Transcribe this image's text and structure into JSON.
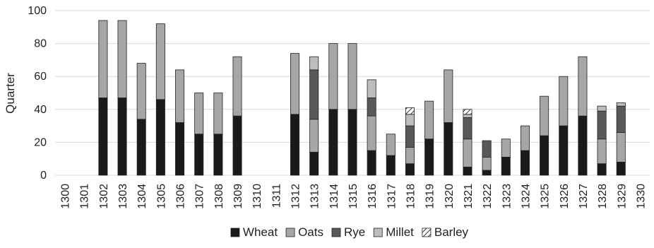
{
  "chart_data": {
    "type": "bar",
    "stacked": true,
    "title": "",
    "xlabel": "",
    "ylabel": "Quarter",
    "ylim": [
      0,
      100
    ],
    "yticks": [
      0,
      20,
      40,
      60,
      80,
      100
    ],
    "grid": true,
    "legend_position": "bottom",
    "categories": [
      "1300",
      "1301",
      "1302",
      "1303",
      "1304",
      "1305",
      "1306",
      "1307",
      "1308",
      "1309",
      "1310",
      "1311",
      "1312",
      "1313",
      "1314",
      "1315",
      "1316",
      "1317",
      "1318",
      "1319",
      "1320",
      "1321",
      "1322",
      "1323",
      "1324",
      "1325",
      "1326",
      "1327",
      "1328",
      "1329",
      "1330"
    ],
    "bar_groups": [
      {
        "year": "1302",
        "values": {
          "Wheat": 47,
          "Oats": 47,
          "Rye": 0,
          "Millet": 0,
          "Barley": 0
        }
      },
      {
        "year": "1303",
        "values": {
          "Wheat": 47,
          "Oats": 47,
          "Rye": 0,
          "Millet": 0,
          "Barley": 0
        }
      },
      {
        "year": "1304",
        "values": {
          "Wheat": 34,
          "Oats": 34,
          "Rye": 0,
          "Millet": 0,
          "Barley": 0
        }
      },
      {
        "year": "1305",
        "values": {
          "Wheat": 46,
          "Oats": 46,
          "Rye": 0,
          "Millet": 0,
          "Barley": 0
        }
      },
      {
        "year": "1306",
        "values": {
          "Wheat": 32,
          "Oats": 32,
          "Rye": 0,
          "Millet": 0,
          "Barley": 0
        }
      },
      {
        "year": "1307",
        "values": {
          "Wheat": 25,
          "Oats": 25,
          "Rye": 0,
          "Millet": 0,
          "Barley": 0
        }
      },
      {
        "year": "1308",
        "values": {
          "Wheat": 25,
          "Oats": 25,
          "Rye": 0,
          "Millet": 0,
          "Barley": 0
        }
      },
      {
        "year": "1309",
        "values": {
          "Wheat": 36,
          "Oats": 36,
          "Rye": 0,
          "Millet": 0,
          "Barley": 0
        }
      },
      {
        "year": "1312",
        "values": {
          "Wheat": 37,
          "Oats": 37,
          "Rye": 0,
          "Millet": 0,
          "Barley": 0
        }
      },
      {
        "year": "1313",
        "values": {
          "Wheat": 14,
          "Oats": 20,
          "Rye": 30,
          "Millet": 8,
          "Barley": 0
        }
      },
      {
        "year": "1314",
        "values": {
          "Wheat": 40,
          "Oats": 40,
          "Rye": 0,
          "Millet": 0,
          "Barley": 0
        }
      },
      {
        "year": "1315",
        "values": {
          "Wheat": 40,
          "Oats": 40,
          "Rye": 0,
          "Millet": 0,
          "Barley": 0
        }
      },
      {
        "year": "1316",
        "values": {
          "Wheat": 15,
          "Oats": 21,
          "Rye": 11,
          "Millet": 11,
          "Barley": 0
        }
      },
      {
        "year": "1317",
        "values": {
          "Wheat": 12,
          "Oats": 13,
          "Rye": 0,
          "Millet": 0,
          "Barley": 0
        }
      },
      {
        "year": "1318",
        "values": {
          "Wheat": 7,
          "Oats": 10,
          "Rye": 13,
          "Millet": 7,
          "Barley": 4
        }
      },
      {
        "year": "1319",
        "values": {
          "Wheat": 22,
          "Oats": 23,
          "Rye": 0,
          "Millet": 0,
          "Barley": 0
        }
      },
      {
        "year": "1320",
        "values": {
          "Wheat": 32,
          "Oats": 32,
          "Rye": 0,
          "Millet": 0,
          "Barley": 0
        }
      },
      {
        "year": "1321",
        "values": {
          "Wheat": 5,
          "Oats": 17,
          "Rye": 13,
          "Millet": 2,
          "Barley": 3
        }
      },
      {
        "year": "1322",
        "values": {
          "Wheat": 3,
          "Oats": 8,
          "Rye": 10,
          "Millet": 0,
          "Barley": 0
        }
      },
      {
        "year": "1323",
        "values": {
          "Wheat": 11,
          "Oats": 11,
          "Rye": 0,
          "Millet": 0,
          "Barley": 0
        }
      },
      {
        "year": "1324",
        "values": {
          "Wheat": 15,
          "Oats": 15,
          "Rye": 0,
          "Millet": 0,
          "Barley": 0
        }
      },
      {
        "year": "1325",
        "values": {
          "Wheat": 24,
          "Oats": 24,
          "Rye": 0,
          "Millet": 0,
          "Barley": 0
        }
      },
      {
        "year": "1326",
        "values": {
          "Wheat": 30,
          "Oats": 30,
          "Rye": 0,
          "Millet": 0,
          "Barley": 0
        }
      },
      {
        "year": "1327",
        "values": {
          "Wheat": 36,
          "Oats": 36,
          "Rye": 0,
          "Millet": 0,
          "Barley": 0
        }
      },
      {
        "year": "1328",
        "values": {
          "Wheat": 7,
          "Oats": 15,
          "Rye": 17,
          "Millet": 3,
          "Barley": 0
        }
      },
      {
        "year": "1329",
        "values": {
          "Wheat": 8,
          "Oats": 18,
          "Rye": 16,
          "Millet": 2,
          "Barley": 0
        }
      }
    ],
    "series": [
      {
        "name": "Wheat",
        "color": "#1a1a1a",
        "pattern": "solid"
      },
      {
        "name": "Oats",
        "color": "#a6a6a6",
        "pattern": "solid"
      },
      {
        "name": "Rye",
        "color": "#595959",
        "pattern": "solid"
      },
      {
        "name": "Millet",
        "color": "#bdbdbd",
        "pattern": "solid"
      },
      {
        "name": "Barley",
        "color": "#ffffff",
        "pattern": "hatch"
      }
    ],
    "gridline_color": "#d9d9d9",
    "bar_outline_color": "#222222"
  }
}
